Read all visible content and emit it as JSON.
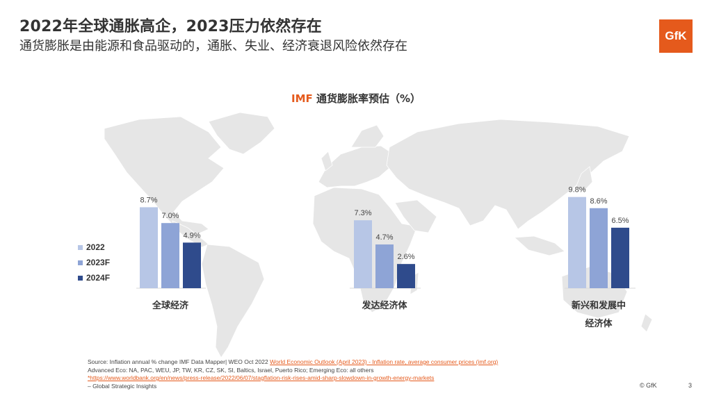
{
  "header": {
    "title": "2022年全球通胀高企，2023压力依然存在",
    "subtitle": "通货膨胀是由能源和食品驱动的，通胀、失业、经济衰退风险依然存在",
    "logo_text": "GfK"
  },
  "chart_title_prefix": "IMF",
  "chart_title_rest": "通货膨胀率预估（%）",
  "chart_data": {
    "type": "bar",
    "title": "IMF 通货膨胀率预估（%）",
    "categories": [
      "全球经济",
      "发达经济体",
      "新兴和发展中经济体"
    ],
    "category_lines": [
      [
        "全球经济"
      ],
      [
        "发达经济体"
      ],
      [
        "新兴和发展中",
        "经济体"
      ]
    ],
    "series": [
      {
        "name": "2022",
        "color": "#b7c6e6",
        "values": [
          8.7,
          7.3,
          9.8
        ],
        "labels": [
          "8.7%",
          "7.3%",
          "9.8%"
        ]
      },
      {
        "name": "2023F",
        "color": "#8ea4d6",
        "values": [
          7.0,
          4.7,
          8.6
        ],
        "labels": [
          "7.0%",
          "4.7%",
          "8.6%"
        ]
      },
      {
        "name": "2024F",
        "color": "#2f4b8c",
        "values": [
          4.9,
          2.6,
          6.5
        ],
        "labels": [
          "4.9%",
          "2.6%",
          "6.5%"
        ]
      }
    ],
    "ylim": [
      0,
      10
    ],
    "legend_position": "left",
    "grid": false,
    "background": "world map"
  },
  "footer": {
    "line1_prefix": "Source: Inflation annual % change IMF Data Mapper|  WEO Oct 2022 ",
    "line1_link": "World Economic Outlook (April 2023) - Inflation rate, average consumer prices (imf.org)",
    "line2": "Advanced Eco: NA, PAC, WEU, JP, TW, KR, CZ, SK, SI, Baltics, Israel, Puerto Rico; Emerging Eco: all others",
    "line3_link": "*https://www.worldbank.org/en/news/press-release/2022/06/07/stagflation-risk-rises-amid-sharp-slowdown-in-growth-energy-markets",
    "line4": "– Global Strategic Insights",
    "copyright": "© GfK",
    "page_number": "3"
  },
  "colors": {
    "accent": "#e55a1c",
    "map": "#e6e6e6",
    "axis": "#d9d9d9"
  }
}
